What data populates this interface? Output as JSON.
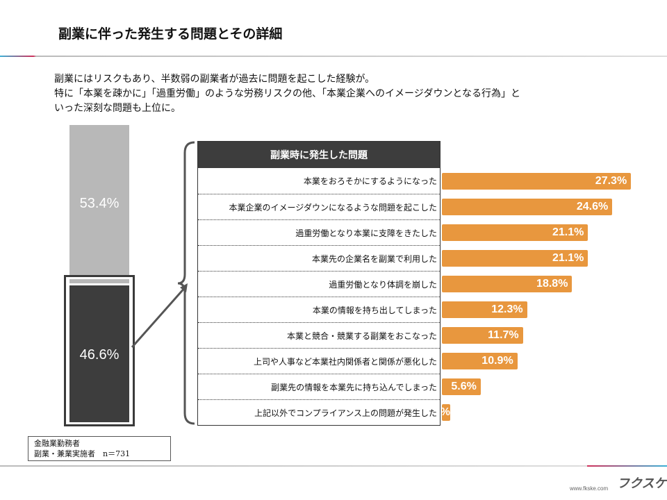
{
  "header": {
    "title": "副業に伴った発生する問題とその詳細"
  },
  "lead": [
    "副業にはリスクもあり、半数弱の副業者が過去に問題を起こした経験が。",
    "特に「本業を疎かに」「過重労働」のような労務リスクの他、「本業企業へのイメージダウンとなる行為」と",
    "いった深刻な問題も上位に。"
  ],
  "chart_data": [
    {
      "type": "bar",
      "orientation": "vertical-stacked",
      "categories": [
        ""
      ],
      "series": [
        {
          "values": [
            53.4
          ],
          "label": "53.4%",
          "color": "#b8b8b8"
        },
        {
          "values": [
            46.6
          ],
          "label": "46.6%",
          "color": "#3d3d3d"
        }
      ]
    },
    {
      "type": "bar",
      "orientation": "horizontal",
      "title": "副業時に発生した問題",
      "color": "#e8973e",
      "categories": [
        "本業をおろそかにするようになった",
        "本業企業のイメージダウンになるような問題を起こした",
        "過重労働となり本業に支障をきたした",
        "本業先の企業名を副業で利用した",
        "過重労働となり体調を崩した",
        "本業の情報を持ち出してしまった",
        "本業と競合・競業する副業をおこなった",
        "上司や人事など本業社内関係者と関係が悪化した",
        "副業先の情報を本業先に持ち込んでしまった",
        "上記以外でコンプライアンス上の問題が発生した"
      ],
      "values": [
        27.3,
        24.6,
        21.1,
        21.1,
        18.8,
        12.3,
        11.7,
        10.9,
        5.6,
        1.2
      ],
      "labels": [
        "27.3%",
        "24.6%",
        "21.1%",
        "21.1%",
        "18.8%",
        "12.3%",
        "11.7%",
        "10.9%",
        "5.6%",
        "1.2%"
      ]
    }
  ],
  "note": {
    "line1": "金融業勤務者",
    "line2": "副業・兼業実施者　n＝731"
  },
  "footer": {
    "url": "www.fkske.com",
    "logo": "フクスケ"
  }
}
